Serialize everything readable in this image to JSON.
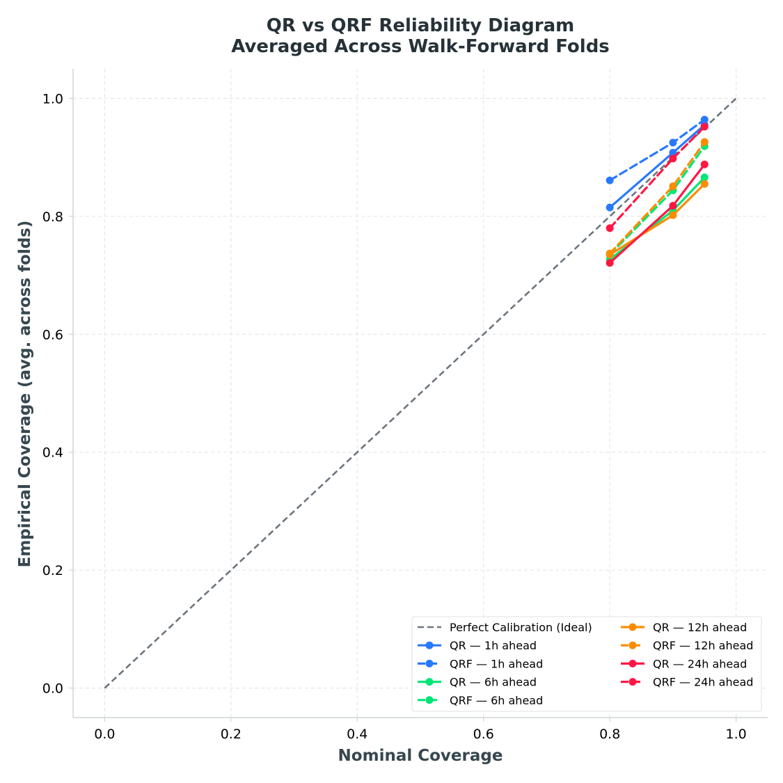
{
  "chart_data": {
    "type": "line",
    "title": [
      "QR vs QRF Reliability Diagram",
      "Averaged Across Walk-Forward Folds"
    ],
    "xlabel": "Nominal Coverage",
    "ylabel": "Empirical Coverage (avg. across folds)",
    "xlim": [
      -0.05,
      1.05
    ],
    "ylim": [
      -0.05,
      1.05
    ],
    "xticks": [
      "0.0",
      "0.2",
      "0.4",
      "0.6",
      "0.8",
      "1.0"
    ],
    "yticks": [
      "0.0",
      "0.2",
      "0.4",
      "0.6",
      "0.8",
      "1.0"
    ],
    "grid": true,
    "legend_position": "lower-right",
    "reference": {
      "name": "Perfect Calibration (Ideal)",
      "x": [
        0.0,
        1.0
      ],
      "y": [
        0.0,
        1.0
      ],
      "color": "#6c757d",
      "dashed": true
    },
    "series": [
      {
        "name": "QR — 1h ahead",
        "color": "#2979ff",
        "dashed": false,
        "x": [
          0.8,
          0.9,
          0.95
        ],
        "y": [
          0.815,
          0.908,
          0.955
        ]
      },
      {
        "name": "QRF — 1h ahead",
        "color": "#2979ff",
        "dashed": true,
        "x": [
          0.8,
          0.9,
          0.95
        ],
        "y": [
          0.861,
          0.925,
          0.964
        ]
      },
      {
        "name": "QR — 6h ahead",
        "color": "#00e676",
        "dashed": false,
        "x": [
          0.8,
          0.9,
          0.95
        ],
        "y": [
          0.727,
          0.81,
          0.866
        ]
      },
      {
        "name": "QRF — 6h ahead",
        "color": "#00e676",
        "dashed": true,
        "x": [
          0.8,
          0.9,
          0.95
        ],
        "y": [
          0.735,
          0.844,
          0.919
        ]
      },
      {
        "name": "QR — 12h ahead",
        "color": "#fb8c00",
        "dashed": false,
        "x": [
          0.8,
          0.9,
          0.95
        ],
        "y": [
          0.735,
          0.802,
          0.855
        ]
      },
      {
        "name": "QRF — 12h ahead",
        "color": "#fb8c00",
        "dashed": true,
        "x": [
          0.8,
          0.9,
          0.95
        ],
        "y": [
          0.737,
          0.851,
          0.926
        ]
      },
      {
        "name": "QR — 24h ahead",
        "color": "#ff1744",
        "dashed": false,
        "x": [
          0.8,
          0.9,
          0.95
        ],
        "y": [
          0.721,
          0.818,
          0.888
        ]
      },
      {
        "name": "QRF — 24h ahead",
        "color": "#ff1744",
        "dashed": true,
        "x": [
          0.8,
          0.9,
          0.95
        ],
        "y": [
          0.78,
          0.898,
          0.952
        ]
      }
    ]
  }
}
